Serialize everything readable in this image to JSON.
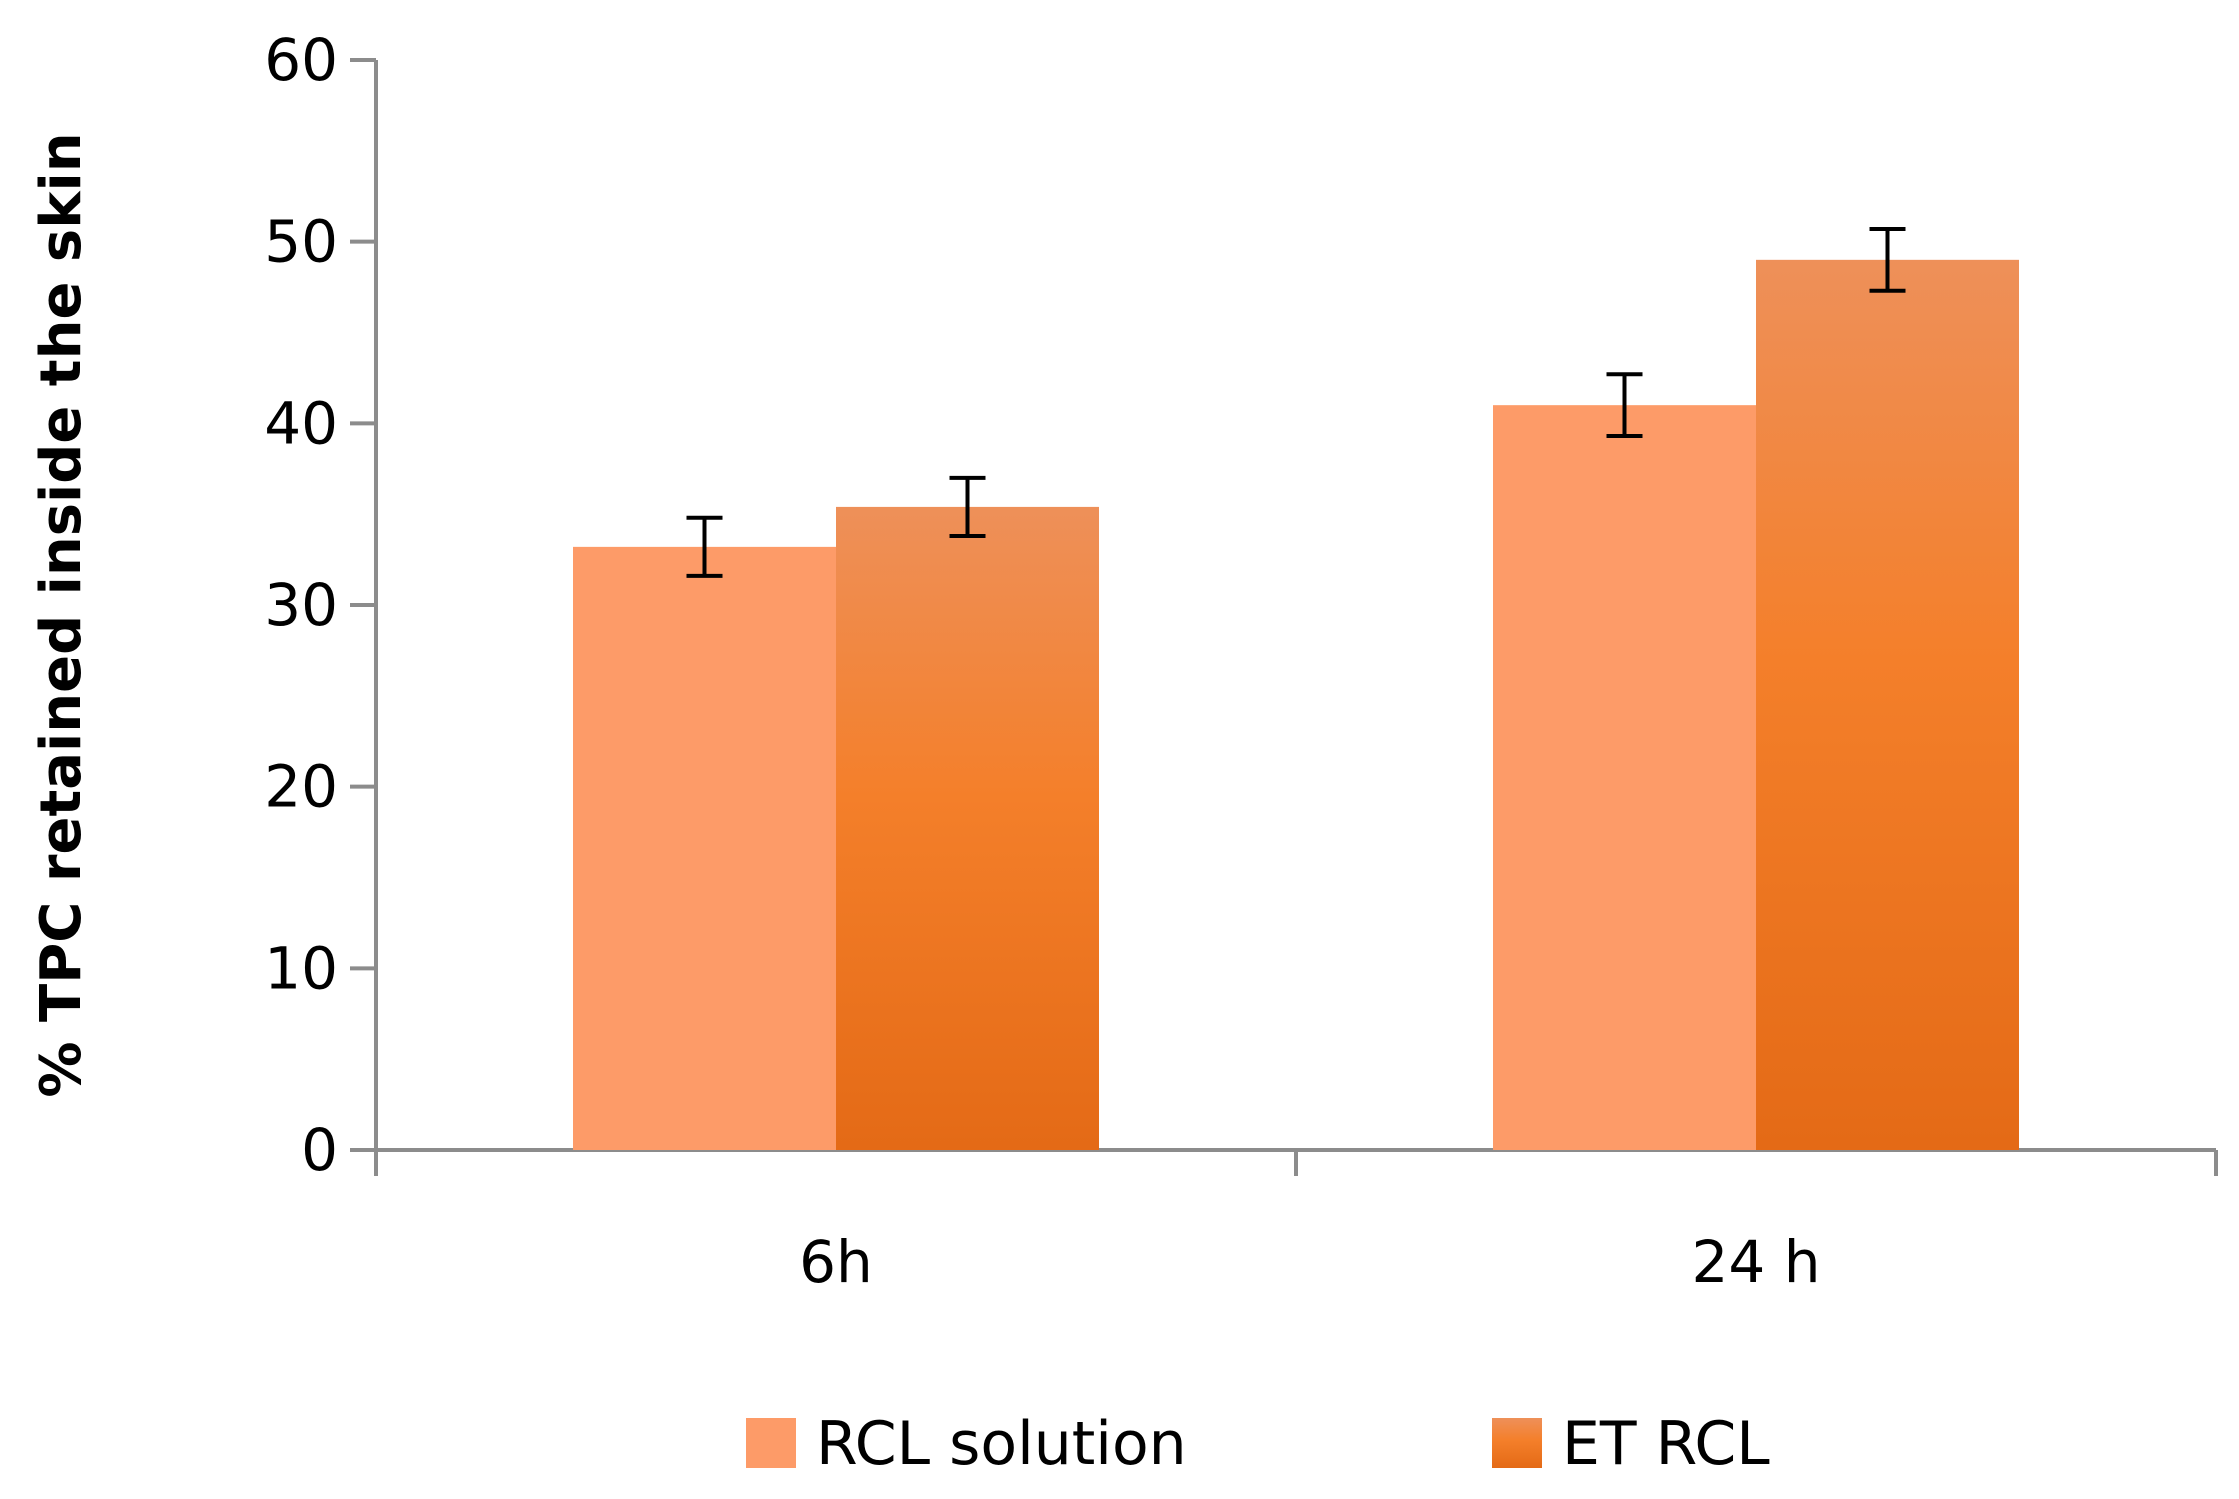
{
  "chart_data": {
    "type": "bar",
    "title": "",
    "xlabel": "",
    "ylabel": "% TPC retained inside the skin",
    "categories": [
      "6h",
      "24 h"
    ],
    "ylim": [
      0,
      60
    ],
    "yticks": [
      0,
      10,
      20,
      30,
      40,
      50,
      60
    ],
    "grid": false,
    "legend_position": "bottom",
    "series": [
      {
        "name": "RCL solution",
        "values": [
          33.2,
          41.0
        ],
        "errors": [
          1.6,
          1.7
        ],
        "color": "#fd9b68"
      },
      {
        "name": "ET RCL",
        "values": [
          35.4,
          49.0
        ],
        "errors": [
          1.6,
          1.7
        ],
        "color": "#f07f2c"
      }
    ]
  }
}
